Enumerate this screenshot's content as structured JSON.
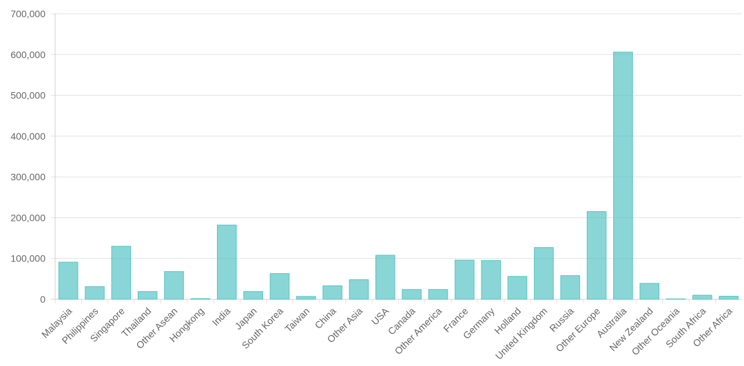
{
  "chart_data": {
    "type": "bar",
    "categories": [
      "Malaysia",
      "Philippines",
      "Singapore",
      "Thailand",
      "Other Asean",
      "Hongkong",
      "India",
      "Japan",
      "South Korea",
      "Taiwan",
      "China",
      "Other Asia",
      "USA",
      "Canada",
      "Other America",
      "France",
      "Germany",
      "Holland",
      "United Kingdom",
      "Russia",
      "Other Europe",
      "Australia",
      "New Zealand",
      "Other Oceania",
      "South Africa",
      "Other Africa"
    ],
    "values": [
      91000,
      31000,
      130000,
      19000,
      68000,
      1500,
      182000,
      19000,
      63000,
      7000,
      33000,
      48000,
      108000,
      24000,
      24000,
      96000,
      95000,
      56000,
      127000,
      58000,
      215000,
      606000,
      39000,
      1000,
      10000,
      7500
    ],
    "title": "",
    "xlabel": "",
    "ylabel": "",
    "ylim": [
      0,
      700000
    ],
    "yticks": [
      "0",
      "100,000",
      "200,000",
      "300,000",
      "400,000",
      "500,000",
      "600,000",
      "700,000"
    ],
    "grid": true,
    "legend": "none",
    "bar_color": "#4bc0c0"
  }
}
